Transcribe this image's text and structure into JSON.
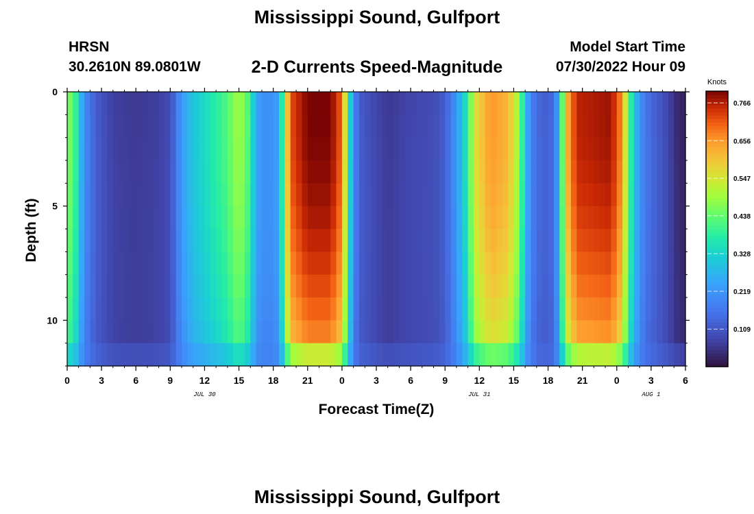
{
  "header": {
    "title": "Mississippi Sound, Gulfport",
    "station_id": "HRSN",
    "station_coords": "30.2610N  89.0801W",
    "product": "2-D Currents Speed-Magnitude",
    "model_label": "Model Start Time",
    "model_time": "07/30/2022 Hour 09"
  },
  "footer": {
    "title": "Mississippi Sound, Gulfport"
  },
  "chart_data": {
    "type": "heatmap",
    "title": "2-D Currents Speed-Magnitude",
    "xlabel": "Forecast Time(Z)",
    "ylabel": "Depth (ft)",
    "x_hours_range": [
      0,
      54
    ],
    "x_tick_step_hours": 3,
    "x_tick_labels": [
      "0",
      "3",
      "6",
      "9",
      "12",
      "15",
      "18",
      "21",
      "0",
      "3",
      "6",
      "9",
      "12",
      "15",
      "18",
      "21",
      "0",
      "3",
      "6"
    ],
    "date_labels": [
      {
        "text": "JUL 30",
        "hour": 12
      },
      {
        "text": "JUL 31",
        "hour": 36
      },
      {
        "text": "AUG 1",
        "hour": 51
      }
    ],
    "y_range_ft": [
      0,
      12
    ],
    "y_ticks": [
      0,
      5,
      10
    ],
    "y_tick_labels": [
      "0",
      "5",
      "10"
    ],
    "colorbar": {
      "unit": "Knots",
      "min": 0,
      "max": 0.8,
      "ticks": [
        0.766,
        0.656,
        0.547,
        0.438,
        0.328,
        0.219,
        0.109
      ],
      "tick_labels": [
        "0.766",
        "0.656",
        "0.547",
        "0.438",
        "0.328",
        "0.219",
        "0.109"
      ]
    },
    "approx_peak_speeds_knots": [
      {
        "hour": 0.5,
        "speed": 0.45
      },
      {
        "hour": 4.5,
        "speed": 0.06
      },
      {
        "hour": 14,
        "speed": 0.5
      },
      {
        "hour": 21.5,
        "speed": 0.8
      },
      {
        "hour": 28,
        "speed": 0.07
      },
      {
        "hour": 37.5,
        "speed": 0.68
      },
      {
        "hour": 42,
        "speed": 0.08
      },
      {
        "hour": 46.5,
        "speed": 0.77
      },
      {
        "hour": 53.5,
        "speed": 0.03
      }
    ]
  }
}
